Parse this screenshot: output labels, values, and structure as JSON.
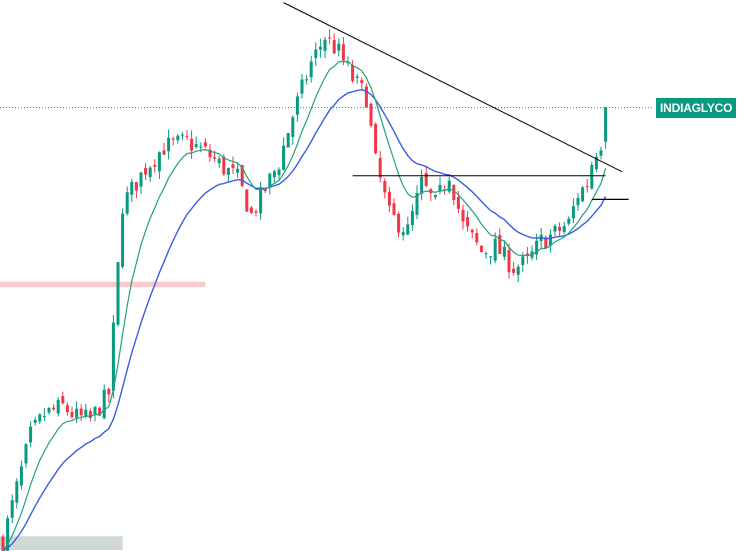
{
  "chart_data": {
    "type": "candlestick",
    "symbol": "INDIAGLYCO",
    "last_price": 1145,
    "y_range": [
      300,
      1350
    ],
    "bar_count": 140,
    "colors": {
      "up": "#089981",
      "down": "#f23645",
      "ema_fast": "#22a17c",
      "ema_slow": "#3a5ee0",
      "trendline": "#000000",
      "price_line": "#089981",
      "supply_zone": "#f9c9cc",
      "demand_zone": "#cfd8d4"
    },
    "close_path": [
      [
        0,
        320
      ],
      [
        6,
        520
      ],
      [
        9,
        560
      ],
      [
        13,
        575
      ],
      [
        16,
        555
      ],
      [
        19,
        550
      ],
      [
        23,
        600
      ],
      [
        26,
        960
      ],
      [
        31,
        1030
      ],
      [
        35,
        1070
      ],
      [
        40,
        1080
      ],
      [
        44,
        1060
      ],
      [
        48,
        1030
      ],
      [
        51,
        1010
      ],
      [
        54,
        940
      ],
      [
        57,
        990
      ],
      [
        60,
        1040
      ],
      [
        63,
        1130
      ],
      [
        67,
        1230
      ],
      [
        70,
        1280
      ],
      [
        73,
        1250
      ],
      [
        76,
        1200
      ],
      [
        79,
        1165
      ],
      [
        81,
        1040
      ],
      [
        84,
        940
      ],
      [
        88,
        910
      ],
      [
        91,
        1000
      ],
      [
        94,
        960
      ],
      [
        97,
        1020
      ],
      [
        100,
        920
      ],
      [
        104,
        870
      ],
      [
        107,
        880
      ],
      [
        111,
        840
      ],
      [
        114,
        850
      ],
      [
        117,
        890
      ],
      [
        120,
        905
      ],
      [
        123,
        925
      ],
      [
        125,
        980
      ],
      [
        127,
        1000
      ],
      [
        128,
        1040
      ],
      [
        129,
        1065
      ],
      [
        130,
        1080
      ],
      [
        131,
        1145
      ]
    ],
    "ema_fast_period": 9,
    "ema_slow_period": 21,
    "levels": {
      "neckline": 1015,
      "swing_high_marker": 970
    },
    "trendline": {
      "from": {
        "bar": 61,
        "price": 1345
      },
      "to": {
        "bar": 132,
        "price": 1015
      }
    },
    "zones": [
      {
        "name": "supply",
        "price_low": 803,
        "price_high": 813,
        "bar_from": 0,
        "bar_to": 44
      },
      {
        "name": "demand",
        "price_low": 302,
        "price_high": 328,
        "bar_from": 0,
        "bar_to": 26
      }
    ]
  }
}
